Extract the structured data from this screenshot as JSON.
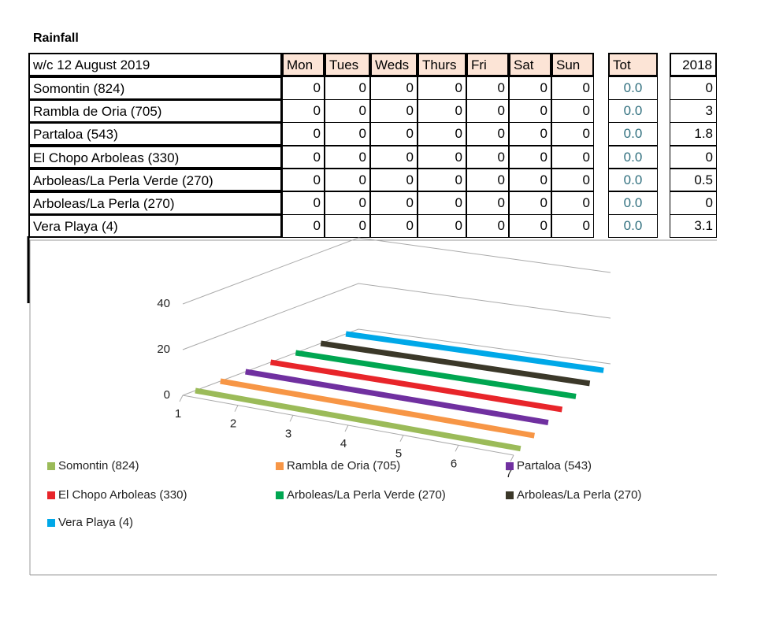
{
  "table": {
    "title": "Rainfall",
    "header": [
      "w/c 12 August 2019",
      "Mon",
      "Tues",
      "Weds",
      "Thurs",
      "Fri",
      "Sat",
      "Sun",
      "Tot",
      "2018"
    ],
    "rows": [
      [
        "Somontin (824)",
        0,
        0,
        0,
        0,
        0,
        0,
        0,
        "0.0",
        0
      ],
      [
        "Rambla de Oria (705)",
        0,
        0,
        0,
        0,
        0,
        0,
        0,
        "0.0",
        3
      ],
      [
        "Partaloa (543)",
        0,
        0,
        0,
        0,
        0,
        0,
        0,
        "0.0",
        1.8
      ],
      [
        "El Chopo Arboleas (330)",
        0,
        0,
        0,
        0,
        0,
        0,
        0,
        "0.0",
        0
      ],
      [
        "Arboleas/La Perla Verde (270)",
        0,
        0,
        0,
        0,
        0,
        0,
        0,
        "0.0",
        0.5
      ],
      [
        "Arboleas/La Perla (270)",
        0,
        0,
        0,
        0,
        0,
        0,
        0,
        "0.0",
        0
      ],
      [
        "Vera Playa (4)",
        0,
        0,
        0,
        0,
        0,
        0,
        0,
        "0.0",
        3.1
      ]
    ]
  },
  "chart_data": {
    "type": "line3d",
    "categories": [
      1,
      2,
      3,
      4,
      5,
      6,
      7
    ],
    "ylim": [
      0,
      40
    ],
    "yticks": [
      0,
      20,
      40
    ],
    "grid": true,
    "series": [
      {
        "name": "Somontin (824)",
        "color": "#9bbb59",
        "values": [
          0,
          0,
          0,
          0,
          0,
          0,
          0
        ]
      },
      {
        "name": "Rambla de Oria (705)",
        "color": "#f79646",
        "values": [
          0,
          0,
          0,
          0,
          0,
          0,
          0
        ]
      },
      {
        "name": "Partaloa (543)",
        "color": "#7030a0",
        "values": [
          0,
          0,
          0,
          0,
          0,
          0,
          0
        ]
      },
      {
        "name": "El Chopo Arboleas (330)",
        "color": "#e8252a",
        "values": [
          0,
          0,
          0,
          0,
          0,
          0,
          0
        ]
      },
      {
        "name": "Arboleas/La Perla Verde (270)",
        "color": "#00a651",
        "values": [
          0,
          0,
          0,
          0,
          0,
          0,
          0
        ]
      },
      {
        "name": "Arboleas/La Perla (270)",
        "color": "#3b3829",
        "values": [
          0,
          0,
          0,
          0,
          0,
          0,
          0
        ]
      },
      {
        "name": "Vera Playa (4)",
        "color": "#00a8e8",
        "values": [
          0,
          0,
          0,
          0,
          0,
          0,
          0
        ]
      }
    ]
  }
}
